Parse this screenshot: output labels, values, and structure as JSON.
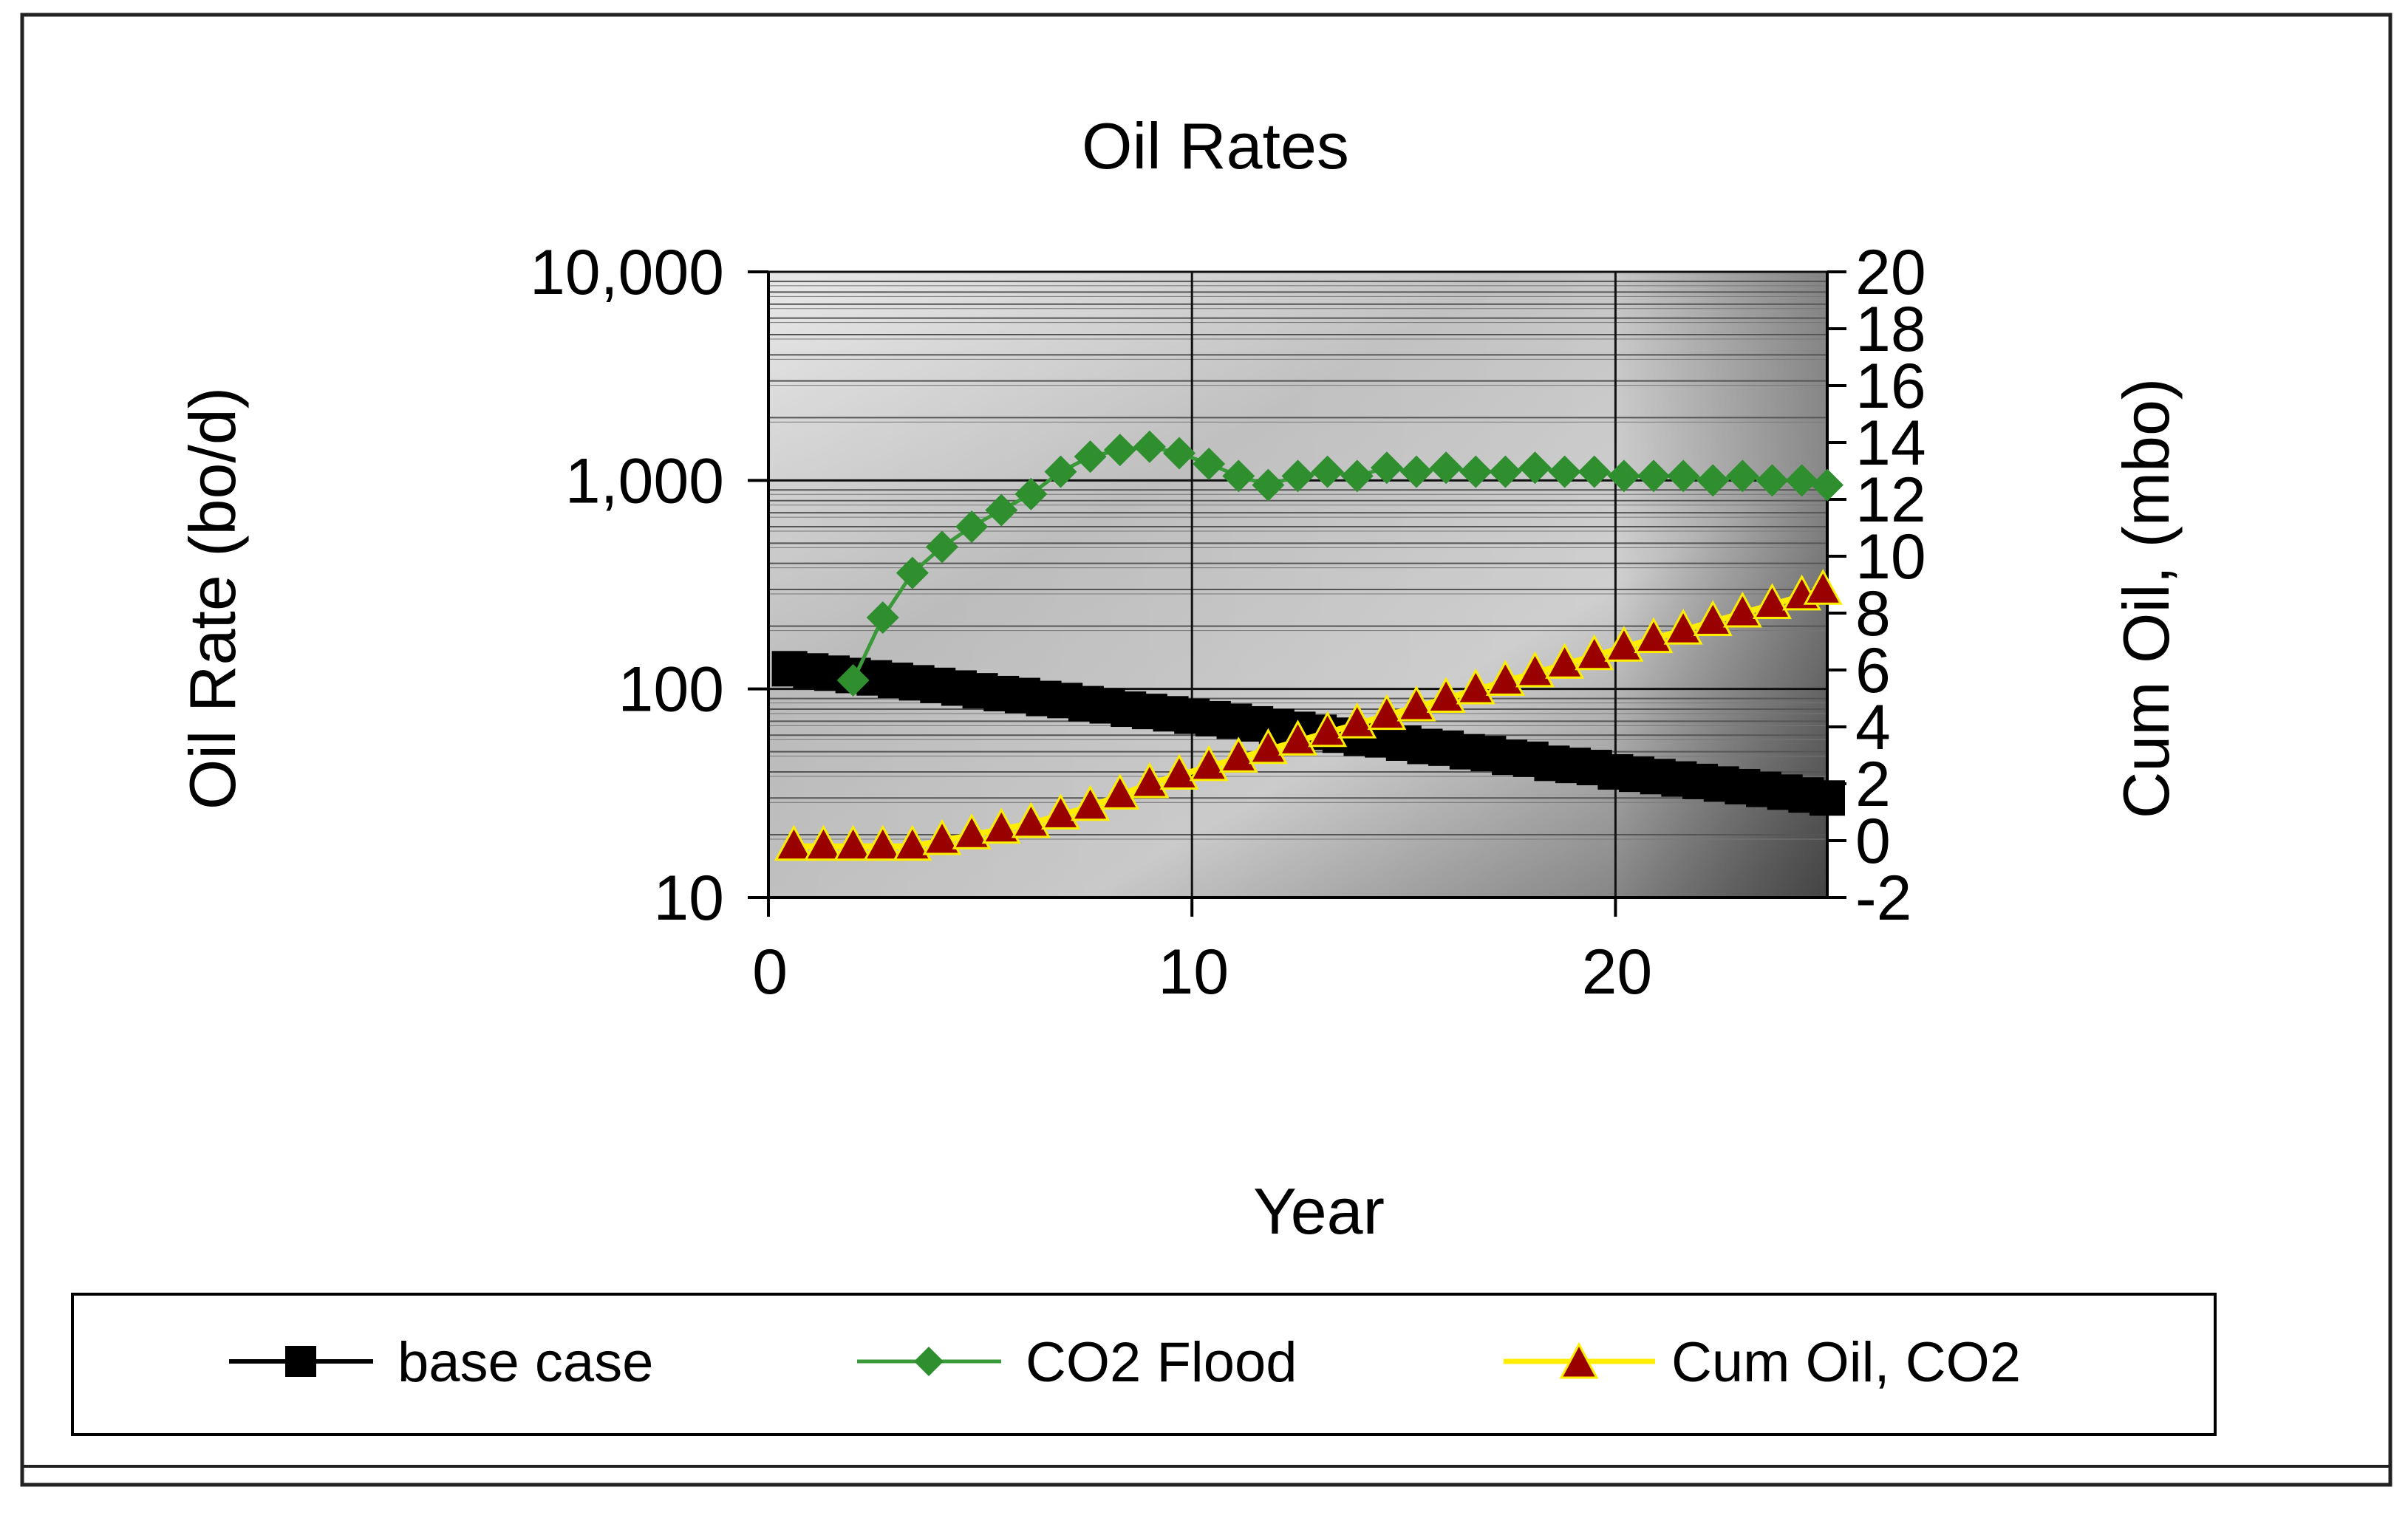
{
  "chart_data": {
    "type": "line",
    "title": "Oil Rates",
    "xlabel": "Year",
    "ylabel": "Oil Rate (bo/d)",
    "y2label": "Cum Oil, (mbo)",
    "xlim": [
      0,
      25
    ],
    "x_ticks": [
      0,
      10,
      20
    ],
    "ylim": [
      10,
      10000
    ],
    "y_scale": "log",
    "y_ticks": [
      10,
      100,
      1000,
      10000
    ],
    "y_tick_labels": [
      "10",
      "100",
      "1,000",
      "10,000"
    ],
    "y2lim": [
      -2,
      20
    ],
    "y2_ticks": [
      -2,
      0,
      2,
      4,
      6,
      8,
      10,
      12,
      14,
      16,
      18,
      20
    ],
    "grid": true,
    "legend_position": "bottom",
    "colors": {
      "base": "#000000",
      "co2": "#3a9a3a",
      "co2_marker": "#2f8f2f",
      "cum_line": "#ffee00",
      "cum_marker": "#990000"
    },
    "series": [
      {
        "name": "base case",
        "axis": "left",
        "marker": "square",
        "x": [
          0.5,
          1.0,
          1.5,
          2.0,
          2.5,
          3.0,
          3.5,
          4.0,
          4.5,
          5.0,
          5.5,
          6.0,
          6.5,
          7.0,
          7.5,
          8.0,
          8.5,
          9.0,
          9.5,
          10.0,
          10.5,
          11.0,
          11.5,
          12.0,
          12.5,
          13.0,
          13.5,
          14.0,
          14.5,
          15.0,
          15.5,
          16.0,
          16.5,
          17.0,
          17.5,
          18.0,
          18.5,
          19.0,
          19.5,
          20.0,
          20.5,
          21.0,
          21.5,
          22.0,
          22.5,
          23.0,
          23.5,
          24.0,
          24.5,
          25.0
        ],
        "values": [
          125,
          122,
          119,
          116,
          113,
          110,
          107,
          104,
          101,
          98,
          95,
          93,
          90,
          88,
          85,
          83,
          80,
          78,
          76,
          74,
          72,
          70,
          68,
          66,
          64,
          62,
          60,
          58,
          57,
          55,
          53,
          52,
          50,
          49,
          47,
          46,
          44,
          43,
          42,
          40,
          39,
          38,
          37,
          36,
          35,
          34,
          33,
          32,
          31,
          30
        ]
      },
      {
        "name": "CO2 Flood",
        "axis": "left",
        "marker": "diamond",
        "x": [
          2.0,
          2.7,
          3.4,
          4.1,
          4.8,
          5.5,
          6.2,
          6.9,
          7.6,
          8.3,
          9.0,
          9.7,
          10.4,
          11.1,
          11.8,
          12.5,
          13.2,
          13.9,
          14.6,
          15.3,
          16.0,
          16.7,
          17.4,
          18.1,
          18.8,
          19.5,
          20.2,
          20.9,
          21.6,
          22.3,
          23.0,
          23.7,
          24.4,
          25.0
        ],
        "values": [
          110,
          220,
          360,
          480,
          600,
          720,
          860,
          1100,
          1300,
          1400,
          1450,
          1350,
          1200,
          1050,
          950,
          1050,
          1100,
          1050,
          1150,
          1100,
          1150,
          1100,
          1100,
          1150,
          1100,
          1100,
          1050,
          1050,
          1050,
          1000,
          1050,
          1000,
          1000,
          950
        ]
      },
      {
        "name": "Cum Oil, CO2",
        "axis": "right",
        "marker": "triangle",
        "x": [
          0.6,
          1.3,
          2.0,
          2.7,
          3.4,
          4.1,
          4.8,
          5.5,
          6.2,
          6.9,
          7.6,
          8.3,
          9.0,
          9.7,
          10.4,
          11.1,
          11.8,
          12.5,
          13.2,
          13.9,
          14.6,
          15.3,
          16.0,
          16.7,
          17.4,
          18.1,
          18.8,
          19.5,
          20.2,
          20.9,
          21.6,
          22.3,
          23.0,
          23.7,
          24.4,
          24.9
        ],
        "values": [
          -0.2,
          -0.2,
          -0.2,
          -0.2,
          -0.2,
          0,
          0.2,
          0.4,
          0.6,
          0.9,
          1.2,
          1.6,
          2.0,
          2.3,
          2.6,
          2.9,
          3.2,
          3.5,
          3.8,
          4.1,
          4.4,
          4.7,
          5.0,
          5.3,
          5.6,
          5.9,
          6.2,
          6.5,
          6.8,
          7.1,
          7.4,
          7.7,
          8.0,
          8.3,
          8.6,
          8.8
        ]
      }
    ]
  }
}
